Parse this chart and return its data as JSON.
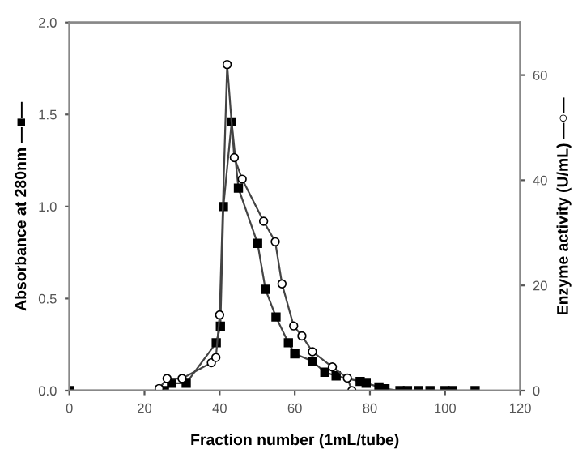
{
  "chart_data": {
    "type": "line",
    "xlabel": "Fraction number (1mL/tube)",
    "ylabel": "Absorbance at 280nm —■—",
    "y2label": "Enzyme activity (U/mL) —○—",
    "xlim": [
      0,
      120
    ],
    "xticks": [
      0,
      20,
      40,
      60,
      80,
      100,
      120
    ],
    "ylim": [
      0,
      2.0
    ],
    "yticks": [
      {
        "value": 0,
        "label": "0.0"
      },
      0.5,
      {
        "value": 1,
        "label": "1.0"
      },
      1.5,
      {
        "value": 2,
        "label": "2.0"
      }
    ],
    "y2lim": [
      0,
      70
    ],
    "y2ticks": [
      0,
      20,
      40,
      60
    ],
    "grid": false,
    "legend": false,
    "series": [
      {
        "color": "#000000",
        "marker": "square",
        "x": [
          0,
          25.3,
          27.2,
          31.1,
          39.1,
          40.2,
          41,
          43.2,
          45,
          50.1,
          52.2,
          55,
          58.3,
          60,
          64.7,
          68,
          71,
          77.4,
          79,
          82.4,
          84,
          88,
          90,
          93,
          96,
          100,
          102,
          108
        ],
        "values": [
          0,
          0,
          0.04,
          0.04,
          0.26,
          0.35,
          1.0,
          1.46,
          1.1,
          0.8,
          0.55,
          0.4,
          0.26,
          0.2,
          0.16,
          0.1,
          0.08,
          0.05,
          0.04,
          0.02,
          0.01,
          0,
          0,
          0,
          0,
          0,
          0,
          0
        ]
      },
      {
        "color": "#ffffff",
        "marker": "circle",
        "axis": "y2",
        "x": [
          23.9,
          26,
          30,
          37.8,
          39,
          40,
          42,
          43.9,
          46,
          51.7,
          54.8,
          56.6,
          59.7,
          61.9,
          64.7,
          70,
          74,
          75.2
        ],
        "values": [
          0.4,
          2.3,
          2.3,
          5.3,
          6.3,
          14.4,
          62,
          44.3,
          40.2,
          32.2,
          28.3,
          20.3,
          12.3,
          10.4,
          7.4,
          4.5,
          2.4,
          0
        ]
      }
    ]
  }
}
